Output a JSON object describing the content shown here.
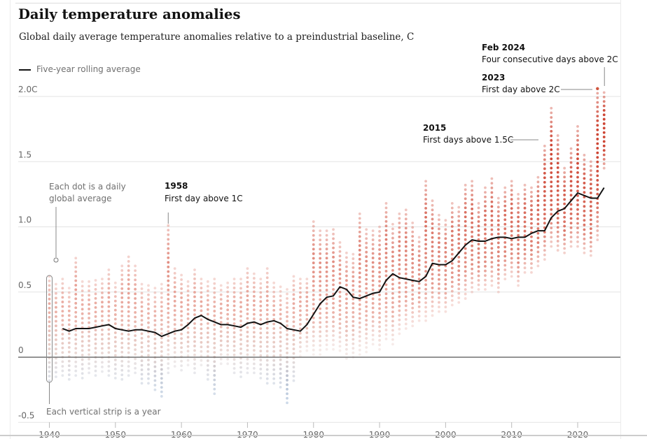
{
  "title": "Daily temperature anomalies",
  "subtitle": "Global daily average temperature anomalies relative to a preindustrial baseline, C",
  "legend": {
    "line_label": "Five-year rolling average"
  },
  "chart_data": {
    "type": "scatter",
    "title": "Daily temperature anomalies",
    "subtitle": "Global daily average temperature anomalies relative to a preindustrial baseline, C",
    "xlabel": "",
    "ylabel": "",
    "xlim": [
      1940,
      2024
    ],
    "ylim": [
      -0.5,
      2.0
    ],
    "y_ticks": [
      {
        "value": 2.0,
        "label": "2.0C"
      },
      {
        "value": 1.5,
        "label": "1.5"
      },
      {
        "value": 1.0,
        "label": "1.0"
      },
      {
        "value": 0.5,
        "label": "0.5"
      },
      {
        "value": 0,
        "label": "0"
      },
      {
        "value": -0.5,
        "label": "-0.5"
      }
    ],
    "x_ticks": [
      1940,
      1950,
      1960,
      1970,
      1980,
      1990,
      2000,
      2010,
      2020
    ],
    "grid": "horizontal",
    "legend_position": "top-left",
    "colors": {
      "warm": "#c9321f",
      "neutral": "#e4d2cd",
      "cool": "#6f95c0",
      "average_line": "#121212"
    },
    "series": [
      {
        "name": "Five-year rolling average",
        "type": "line",
        "points": [
          [
            1942,
            0.22
          ],
          [
            1943,
            0.2
          ],
          [
            1944,
            0.22
          ],
          [
            1945,
            0.22
          ],
          [
            1946,
            0.22
          ],
          [
            1947,
            0.23
          ],
          [
            1948,
            0.24
          ],
          [
            1949,
            0.25
          ],
          [
            1950,
            0.22
          ],
          [
            1951,
            0.21
          ],
          [
            1952,
            0.2
          ],
          [
            1953,
            0.21
          ],
          [
            1954,
            0.21
          ],
          [
            1955,
            0.2
          ],
          [
            1956,
            0.19
          ],
          [
            1957,
            0.16
          ],
          [
            1958,
            0.18
          ],
          [
            1959,
            0.2
          ],
          [
            1960,
            0.21
          ],
          [
            1961,
            0.25
          ],
          [
            1962,
            0.3
          ],
          [
            1963,
            0.32
          ],
          [
            1964,
            0.29
          ],
          [
            1965,
            0.27
          ],
          [
            1966,
            0.25
          ],
          [
            1967,
            0.25
          ],
          [
            1968,
            0.24
          ],
          [
            1969,
            0.23
          ],
          [
            1970,
            0.26
          ],
          [
            1971,
            0.27
          ],
          [
            1972,
            0.25
          ],
          [
            1973,
            0.27
          ],
          [
            1974,
            0.28
          ],
          [
            1975,
            0.26
          ],
          [
            1976,
            0.22
          ],
          [
            1977,
            0.21
          ],
          [
            1978,
            0.2
          ],
          [
            1979,
            0.25
          ],
          [
            1980,
            0.33
          ],
          [
            1981,
            0.41
          ],
          [
            1982,
            0.46
          ],
          [
            1983,
            0.47
          ],
          [
            1984,
            0.54
          ],
          [
            1985,
            0.52
          ],
          [
            1986,
            0.46
          ],
          [
            1987,
            0.45
          ],
          [
            1988,
            0.47
          ],
          [
            1989,
            0.49
          ],
          [
            1990,
            0.5
          ],
          [
            1991,
            0.59
          ],
          [
            1992,
            0.64
          ],
          [
            1993,
            0.61
          ],
          [
            1994,
            0.6
          ],
          [
            1995,
            0.59
          ],
          [
            1996,
            0.58
          ],
          [
            1997,
            0.62
          ],
          [
            1998,
            0.72
          ],
          [
            1999,
            0.71
          ],
          [
            2000,
            0.71
          ],
          [
            2001,
            0.74
          ],
          [
            2002,
            0.8
          ],
          [
            2003,
            0.86
          ],
          [
            2004,
            0.9
          ],
          [
            2005,
            0.89
          ],
          [
            2006,
            0.89
          ],
          [
            2007,
            0.91
          ],
          [
            2008,
            0.92
          ],
          [
            2009,
            0.92
          ],
          [
            2010,
            0.91
          ],
          [
            2011,
            0.92
          ],
          [
            2012,
            0.92
          ],
          [
            2013,
            0.95
          ],
          [
            2014,
            0.97
          ],
          [
            2015,
            0.97
          ],
          [
            2016,
            1.07
          ],
          [
            2017,
            1.12
          ],
          [
            2018,
            1.14
          ],
          [
            2019,
            1.2
          ],
          [
            2020,
            1.26
          ],
          [
            2021,
            1.24
          ],
          [
            2022,
            1.22
          ],
          [
            2023,
            1.22
          ],
          [
            2024,
            1.3
          ]
        ]
      },
      {
        "name": "Daily global averages",
        "type": "strip",
        "per_year_range": [
          [
            1940,
            -0.18,
            0.62
          ],
          [
            1941,
            -0.15,
            0.56
          ],
          [
            1942,
            -0.14,
            0.6
          ],
          [
            1943,
            -0.17,
            0.53
          ],
          [
            1944,
            -0.14,
            0.76
          ],
          [
            1945,
            -0.16,
            0.58
          ],
          [
            1946,
            -0.12,
            0.58
          ],
          [
            1947,
            -0.14,
            0.59
          ],
          [
            1948,
            -0.11,
            0.6
          ],
          [
            1949,
            -0.14,
            0.67
          ],
          [
            1950,
            -0.16,
            0.57
          ],
          [
            1951,
            -0.17,
            0.7
          ],
          [
            1952,
            -0.14,
            0.77
          ],
          [
            1953,
            -0.12,
            0.7
          ],
          [
            1954,
            -0.2,
            0.56
          ],
          [
            1955,
            -0.2,
            0.55
          ],
          [
            1956,
            -0.25,
            0.53
          ],
          [
            1957,
            -0.3,
            0.56
          ],
          [
            1958,
            -0.12,
            1.01
          ],
          [
            1959,
            -0.07,
            0.68
          ],
          [
            1960,
            -0.1,
            0.63
          ],
          [
            1961,
            -0.06,
            0.58
          ],
          [
            1962,
            -0.12,
            0.67
          ],
          [
            1963,
            -0.06,
            0.6
          ],
          [
            1964,
            -0.17,
            0.58
          ],
          [
            1965,
            -0.28,
            0.6
          ],
          [
            1966,
            -0.05,
            0.55
          ],
          [
            1967,
            -0.05,
            0.57
          ],
          [
            1968,
            -0.12,
            0.6
          ],
          [
            1969,
            -0.15,
            0.6
          ],
          [
            1970,
            -0.12,
            0.68
          ],
          [
            1971,
            -0.12,
            0.64
          ],
          [
            1972,
            -0.16,
            0.6
          ],
          [
            1973,
            -0.2,
            0.68
          ],
          [
            1974,
            -0.2,
            0.57
          ],
          [
            1975,
            -0.23,
            0.54
          ],
          [
            1976,
            -0.35,
            0.52
          ],
          [
            1977,
            -0.18,
            0.62
          ],
          [
            1978,
            0.01,
            0.6
          ],
          [
            1979,
            0.05,
            0.6
          ],
          [
            1980,
            0.02,
            1.04
          ],
          [
            1981,
            0.02,
            0.97
          ],
          [
            1982,
            0.06,
            0.97
          ],
          [
            1983,
            0.06,
            0.98
          ],
          [
            1984,
            0.05,
            0.88
          ],
          [
            1985,
            -0.01,
            0.8
          ],
          [
            1986,
            0.0,
            0.79
          ],
          [
            1987,
            0.02,
            1.1
          ],
          [
            1988,
            0.04,
            0.98
          ],
          [
            1989,
            0.1,
            0.97
          ],
          [
            1990,
            0.06,
            1.0
          ],
          [
            1991,
            0.14,
            1.18
          ],
          [
            1992,
            0.1,
            1.02
          ],
          [
            1993,
            0.18,
            1.1
          ],
          [
            1994,
            0.22,
            1.13
          ],
          [
            1995,
            0.24,
            1.03
          ],
          [
            1996,
            0.28,
            0.92
          ],
          [
            1997,
            0.28,
            1.35
          ],
          [
            1998,
            0.32,
            1.2
          ],
          [
            1999,
            0.35,
            1.09
          ],
          [
            2000,
            0.35,
            1.05
          ],
          [
            2001,
            0.4,
            1.18
          ],
          [
            2002,
            0.42,
            1.15
          ],
          [
            2003,
            0.45,
            1.32
          ],
          [
            2004,
            0.5,
            1.35
          ],
          [
            2005,
            0.52,
            1.18
          ],
          [
            2006,
            0.52,
            1.3
          ],
          [
            2007,
            0.55,
            1.37
          ],
          [
            2008,
            0.5,
            1.22
          ],
          [
            2009,
            0.6,
            1.3
          ],
          [
            2010,
            0.62,
            1.35
          ],
          [
            2011,
            0.55,
            1.25
          ],
          [
            2012,
            0.65,
            1.32
          ],
          [
            2013,
            0.65,
            1.3
          ],
          [
            2014,
            0.7,
            1.38
          ],
          [
            2015,
            0.75,
            1.62
          ],
          [
            2016,
            0.85,
            1.91
          ],
          [
            2017,
            0.82,
            1.7
          ],
          [
            2018,
            0.8,
            1.45
          ],
          [
            2019,
            0.85,
            1.6
          ],
          [
            2020,
            0.85,
            1.77
          ],
          [
            2021,
            0.8,
            1.55
          ],
          [
            2022,
            0.78,
            1.5
          ],
          [
            2023,
            0.9,
            2.06
          ],
          [
            2024,
            1.45,
            2.03
          ]
        ]
      }
    ],
    "annotations": [
      {
        "year": "Feb 2024",
        "text": "Four consecutive days above 2C"
      },
      {
        "year": "2023",
        "text": "First day above 2C"
      },
      {
        "year": "2015",
        "text": "First days above 1.5C"
      },
      {
        "year": "1958",
        "text": "First day above 1C"
      }
    ],
    "notes": {
      "dot": "Each dot is a daily global average",
      "strip": "Each vertical strip is a year"
    }
  }
}
